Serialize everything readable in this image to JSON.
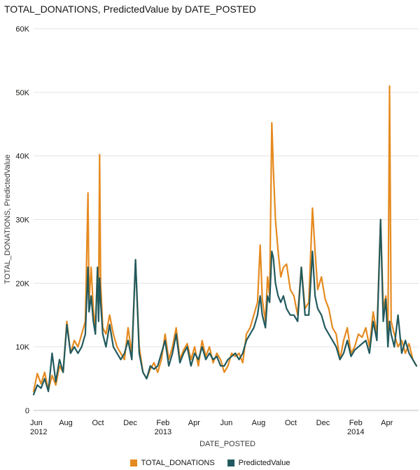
{
  "chart_data": {
    "type": "line",
    "title": "TOTAL_DONATIONS, PredictedValue by DATE_POSTED",
    "xlabel": "DATE_POSTED",
    "ylabel": "TOTAL_DONATIONS, PredictedValue",
    "ylim": [
      0,
      60000
    ],
    "xlim": [
      "2012-06-01",
      "2014-05-31"
    ],
    "y_ticks": [
      {
        "value": 0,
        "label": "0"
      },
      {
        "value": 10000,
        "label": "10K"
      },
      {
        "value": 20000,
        "label": "20K"
      },
      {
        "value": 30000,
        "label": "30K"
      },
      {
        "value": 40000,
        "label": "40K"
      },
      {
        "value": 50000,
        "label": "50K"
      },
      {
        "value": 60000,
        "label": "60K"
      }
    ],
    "x_ticks": [
      {
        "date": "2012-06-01",
        "label": "Jun",
        "year": "2012"
      },
      {
        "date": "2012-08-01",
        "label": "Aug",
        "year": ""
      },
      {
        "date": "2012-10-01",
        "label": "Oct",
        "year": ""
      },
      {
        "date": "2012-12-01",
        "label": "Dec",
        "year": ""
      },
      {
        "date": "2013-02-01",
        "label": "Feb",
        "year": "2013"
      },
      {
        "date": "2013-04-01",
        "label": "Apr",
        "year": ""
      },
      {
        "date": "2013-06-01",
        "label": "Jun",
        "year": ""
      },
      {
        "date": "2013-08-01",
        "label": "Aug",
        "year": ""
      },
      {
        "date": "2013-10-01",
        "label": "Oct",
        "year": ""
      },
      {
        "date": "2013-12-01",
        "label": "Dec",
        "year": ""
      },
      {
        "date": "2014-02-01",
        "label": "Feb",
        "year": "2014"
      },
      {
        "date": "2014-04-01",
        "label": "Apr",
        "year": ""
      }
    ],
    "grid": "horizontal",
    "legend_position": "bottom",
    "series": [
      {
        "name": "TOTAL_DONATIONS",
        "color": "#E58A1F",
        "points": [
          [
            "2012-06-01",
            3000
          ],
          [
            "2012-06-08",
            5800
          ],
          [
            "2012-06-15",
            4200
          ],
          [
            "2012-06-22",
            6000
          ],
          [
            "2012-06-29",
            3200
          ],
          [
            "2012-07-06",
            5500
          ],
          [
            "2012-07-13",
            4000
          ],
          [
            "2012-07-20",
            7000
          ],
          [
            "2012-07-27",
            6000
          ],
          [
            "2012-08-03",
            14000
          ],
          [
            "2012-08-10",
            9000
          ],
          [
            "2012-08-17",
            11000
          ],
          [
            "2012-08-24",
            10000
          ],
          [
            "2012-08-31",
            12000
          ],
          [
            "2012-09-07",
            14000
          ],
          [
            "2012-09-12",
            34200
          ],
          [
            "2012-09-14",
            17000
          ],
          [
            "2012-09-18",
            22500
          ],
          [
            "2012-09-22",
            16000
          ],
          [
            "2012-09-26",
            13000
          ],
          [
            "2012-09-30",
            22500
          ],
          [
            "2012-10-02",
            16000
          ],
          [
            "2012-10-04",
            40200
          ],
          [
            "2012-10-06",
            20000
          ],
          [
            "2012-10-10",
            13000
          ],
          [
            "2012-10-16",
            12000
          ],
          [
            "2012-10-23",
            15000
          ],
          [
            "2012-10-30",
            12000
          ],
          [
            "2012-11-06",
            10000
          ],
          [
            "2012-11-13",
            9000
          ],
          [
            "2012-11-20",
            8000
          ],
          [
            "2012-11-27",
            13000
          ],
          [
            "2012-12-04",
            9000
          ],
          [
            "2012-12-11",
            23500
          ],
          [
            "2012-12-18",
            10000
          ],
          [
            "2012-12-25",
            6000
          ],
          [
            "2013-01-01",
            5000
          ],
          [
            "2013-01-08",
            6500
          ],
          [
            "2013-01-15",
            7500
          ],
          [
            "2013-01-22",
            6000
          ],
          [
            "2013-01-29",
            8000
          ],
          [
            "2013-02-05",
            12000
          ],
          [
            "2013-02-12",
            8000
          ],
          [
            "2013-02-19",
            10000
          ],
          [
            "2013-02-26",
            13000
          ],
          [
            "2013-03-05",
            8000
          ],
          [
            "2013-03-12",
            9500
          ],
          [
            "2013-03-19",
            10500
          ],
          [
            "2013-03-26",
            8000
          ],
          [
            "2013-04-02",
            10000
          ],
          [
            "2013-04-09",
            7000
          ],
          [
            "2013-04-16",
            11000
          ],
          [
            "2013-04-23",
            8500
          ],
          [
            "2013-04-30",
            10000
          ],
          [
            "2013-05-07",
            7500
          ],
          [
            "2013-05-14",
            9000
          ],
          [
            "2013-05-21",
            8000
          ],
          [
            "2013-05-28",
            6000
          ],
          [
            "2013-06-04",
            7000
          ],
          [
            "2013-06-11",
            9000
          ],
          [
            "2013-06-18",
            8500
          ],
          [
            "2013-06-25",
            9000
          ],
          [
            "2013-07-02",
            7500
          ],
          [
            "2013-07-09",
            12000
          ],
          [
            "2013-07-16",
            13000
          ],
          [
            "2013-07-23",
            15000
          ],
          [
            "2013-07-30",
            17000
          ],
          [
            "2013-08-04",
            26000
          ],
          [
            "2013-08-08",
            17500
          ],
          [
            "2013-08-14",
            14000
          ],
          [
            "2013-08-18",
            21000
          ],
          [
            "2013-08-22",
            18000
          ],
          [
            "2013-08-26",
            45200
          ],
          [
            "2013-08-29",
            38000
          ],
          [
            "2013-09-02",
            30000
          ],
          [
            "2013-09-07",
            25000
          ],
          [
            "2013-09-12",
            21000
          ],
          [
            "2013-09-17",
            22500
          ],
          [
            "2013-09-23",
            23000
          ],
          [
            "2013-09-30",
            19000
          ],
          [
            "2013-10-07",
            18000
          ],
          [
            "2013-10-14",
            15000
          ],
          [
            "2013-10-21",
            22500
          ],
          [
            "2013-10-28",
            16000
          ],
          [
            "2013-11-04",
            17000
          ],
          [
            "2013-11-11",
            31800
          ],
          [
            "2013-11-16",
            25000
          ],
          [
            "2013-11-21",
            19000
          ],
          [
            "2013-11-28",
            21000
          ],
          [
            "2013-12-05",
            17500
          ],
          [
            "2013-12-12",
            16000
          ],
          [
            "2013-12-19",
            13000
          ],
          [
            "2013-12-26",
            12000
          ],
          [
            "2014-01-02",
            8000
          ],
          [
            "2014-01-09",
            11000
          ],
          [
            "2014-01-16",
            13000
          ],
          [
            "2014-01-23",
            9000
          ],
          [
            "2014-01-30",
            10000
          ],
          [
            "2014-02-06",
            12000
          ],
          [
            "2014-02-13",
            11500
          ],
          [
            "2014-02-20",
            13000
          ],
          [
            "2014-02-27",
            10000
          ],
          [
            "2014-03-06",
            15500
          ],
          [
            "2014-03-13",
            12000
          ],
          [
            "2014-03-20",
            30000
          ],
          [
            "2014-03-25",
            16000
          ],
          [
            "2014-03-30",
            18000
          ],
          [
            "2014-04-03",
            12000
          ],
          [
            "2014-04-06",
            51000
          ],
          [
            "2014-04-09",
            14000
          ],
          [
            "2014-04-15",
            12000
          ],
          [
            "2014-04-22",
            10000
          ],
          [
            "2014-04-29",
            11000
          ],
          [
            "2014-05-06",
            9000
          ],
          [
            "2014-05-13",
            10500
          ],
          [
            "2014-05-20",
            8000
          ],
          [
            "2014-05-27",
            7000
          ]
        ]
      },
      {
        "name": "PredictedValue",
        "color": "#215A5E",
        "points": [
          [
            "2012-06-01",
            2500
          ],
          [
            "2012-06-08",
            4000
          ],
          [
            "2012-06-15",
            3500
          ],
          [
            "2012-06-22",
            5000
          ],
          [
            "2012-06-29",
            3000
          ],
          [
            "2012-07-06",
            9000
          ],
          [
            "2012-07-13",
            4500
          ],
          [
            "2012-07-20",
            8000
          ],
          [
            "2012-07-27",
            6000
          ],
          [
            "2012-08-03",
            13500
          ],
          [
            "2012-08-10",
            9000
          ],
          [
            "2012-08-17",
            10000
          ],
          [
            "2012-08-24",
            9000
          ],
          [
            "2012-08-31",
            10000
          ],
          [
            "2012-09-07",
            12000
          ],
          [
            "2012-09-12",
            22500
          ],
          [
            "2012-09-14",
            15500
          ],
          [
            "2012-09-18",
            18000
          ],
          [
            "2012-09-22",
            14000
          ],
          [
            "2012-09-26",
            12000
          ],
          [
            "2012-09-30",
            22500
          ],
          [
            "2012-10-02",
            14000
          ],
          [
            "2012-10-04",
            20800
          ],
          [
            "2012-10-06",
            17000
          ],
          [
            "2012-10-10",
            12000
          ],
          [
            "2012-10-16",
            10000
          ],
          [
            "2012-10-23",
            13500
          ],
          [
            "2012-10-30",
            10000
          ],
          [
            "2012-11-06",
            9000
          ],
          [
            "2012-11-13",
            8000
          ],
          [
            "2012-11-20",
            9000
          ],
          [
            "2012-11-27",
            11000
          ],
          [
            "2012-12-04",
            8000
          ],
          [
            "2012-12-11",
            23700
          ],
          [
            "2012-12-18",
            9000
          ],
          [
            "2012-12-25",
            6000
          ],
          [
            "2013-01-01",
            5000
          ],
          [
            "2013-01-08",
            7000
          ],
          [
            "2013-01-15",
            6500
          ],
          [
            "2013-01-22",
            7000
          ],
          [
            "2013-01-29",
            9000
          ],
          [
            "2013-02-05",
            11000
          ],
          [
            "2013-02-12",
            7000
          ],
          [
            "2013-02-19",
            9000
          ],
          [
            "2013-02-26",
            12000
          ],
          [
            "2013-03-05",
            7500
          ],
          [
            "2013-03-12",
            9000
          ],
          [
            "2013-03-19",
            10000
          ],
          [
            "2013-03-26",
            7000
          ],
          [
            "2013-04-02",
            9000
          ],
          [
            "2013-04-09",
            8000
          ],
          [
            "2013-04-16",
            10000
          ],
          [
            "2013-04-23",
            8000
          ],
          [
            "2013-04-30",
            9000
          ],
          [
            "2013-05-07",
            8000
          ],
          [
            "2013-05-14",
            8500
          ],
          [
            "2013-05-21",
            7000
          ],
          [
            "2013-05-28",
            7000
          ],
          [
            "2013-06-04",
            8000
          ],
          [
            "2013-06-11",
            8500
          ],
          [
            "2013-06-18",
            9000
          ],
          [
            "2013-06-25",
            8000
          ],
          [
            "2013-07-02",
            9000
          ],
          [
            "2013-07-09",
            11000
          ],
          [
            "2013-07-16",
            12000
          ],
          [
            "2013-07-23",
            13000
          ],
          [
            "2013-07-30",
            15000
          ],
          [
            "2013-08-04",
            18000
          ],
          [
            "2013-08-08",
            15000
          ],
          [
            "2013-08-14",
            13000
          ],
          [
            "2013-08-18",
            18000
          ],
          [
            "2013-08-22",
            17000
          ],
          [
            "2013-08-26",
            25000
          ],
          [
            "2013-08-29",
            24000
          ],
          [
            "2013-09-02",
            20000
          ],
          [
            "2013-09-07",
            18000
          ],
          [
            "2013-09-12",
            17000
          ],
          [
            "2013-09-17",
            18000
          ],
          [
            "2013-09-23",
            16000
          ],
          [
            "2013-09-30",
            15000
          ],
          [
            "2013-10-07",
            15000
          ],
          [
            "2013-10-14",
            14000
          ],
          [
            "2013-10-21",
            22500
          ],
          [
            "2013-10-28",
            15000
          ],
          [
            "2013-11-04",
            15000
          ],
          [
            "2013-11-11",
            25000
          ],
          [
            "2013-11-16",
            18000
          ],
          [
            "2013-11-21",
            16000
          ],
          [
            "2013-11-28",
            15000
          ],
          [
            "2013-12-05",
            13000
          ],
          [
            "2013-12-12",
            12000
          ],
          [
            "2013-12-19",
            11000
          ],
          [
            "2013-12-26",
            10000
          ],
          [
            "2014-01-02",
            8000
          ],
          [
            "2014-01-09",
            9000
          ],
          [
            "2014-01-16",
            11000
          ],
          [
            "2014-01-23",
            8500
          ],
          [
            "2014-01-30",
            9500
          ],
          [
            "2014-02-06",
            10000
          ],
          [
            "2014-02-13",
            10500
          ],
          [
            "2014-02-20",
            11000
          ],
          [
            "2014-02-27",
            9000
          ],
          [
            "2014-03-06",
            14000
          ],
          [
            "2014-03-13",
            11000
          ],
          [
            "2014-03-20",
            30000
          ],
          [
            "2014-03-25",
            14000
          ],
          [
            "2014-03-30",
            17500
          ],
          [
            "2014-04-03",
            10000
          ],
          [
            "2014-04-06",
            14000
          ],
          [
            "2014-04-09",
            12000
          ],
          [
            "2014-04-15",
            10000
          ],
          [
            "2014-04-22",
            15000
          ],
          [
            "2014-04-29",
            9000
          ],
          [
            "2014-05-06",
            11000
          ],
          [
            "2014-05-13",
            9000
          ],
          [
            "2014-05-20",
            8000
          ],
          [
            "2014-05-27",
            7000
          ]
        ]
      }
    ]
  }
}
